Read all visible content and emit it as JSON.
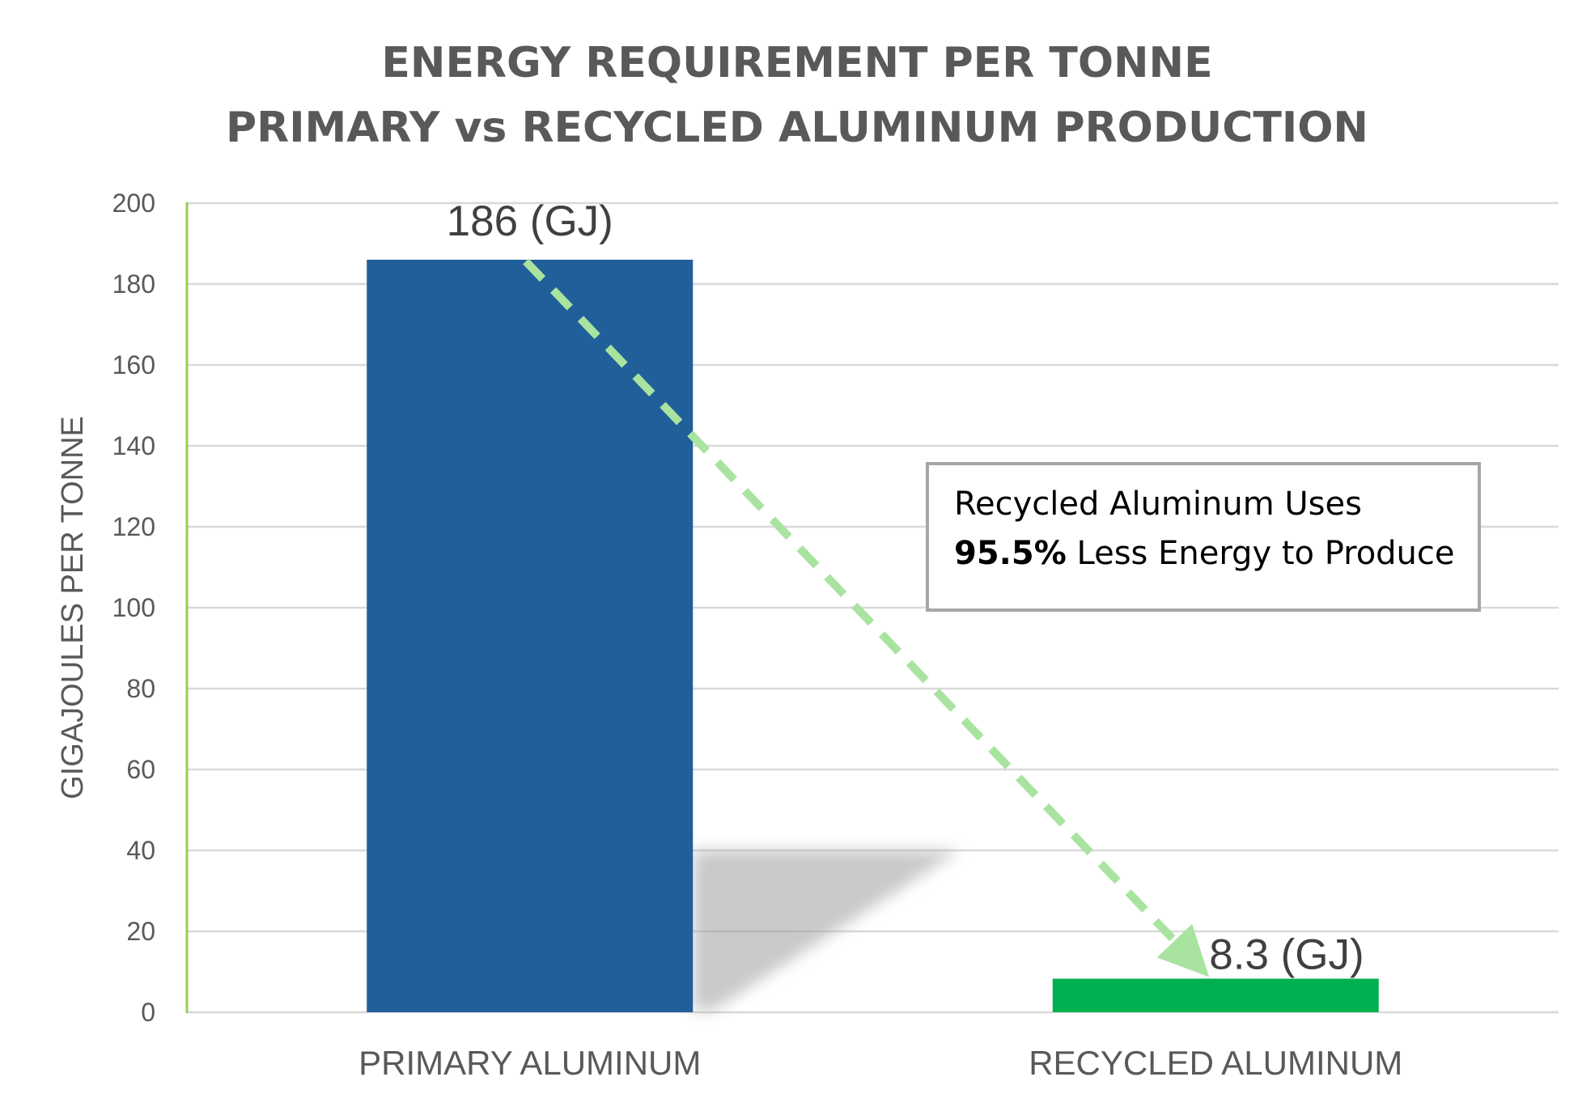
{
  "chart_data": {
    "type": "bar",
    "title_lines": [
      "ENERGY REQUIREMENT PER TONNE",
      "PRIMARY vs RECYCLED ALUMINUM PRODUCTION"
    ],
    "xlabel": "",
    "ylabel": "GIGAJOULES PER TONNE",
    "categories": [
      "PRIMARY ALUMINUM",
      "RECYCLED ALUMINUM"
    ],
    "values": [
      186,
      8.3
    ],
    "data_labels": [
      "186 (GJ)",
      "8.3 (GJ)"
    ],
    "bar_colors": [
      "#215F9A",
      "#00B050"
    ],
    "ylim": [
      0,
      200
    ],
    "yticks": [
      "0",
      "20",
      "40",
      "60",
      "80",
      "100",
      "120",
      "140",
      "160",
      "180",
      "200"
    ],
    "grid": true,
    "legend": "none",
    "annotation": {
      "line1": "Recycled Aluminum Uses",
      "bold_part": "95.5%",
      "line2_rest": " Less Energy to Produce"
    },
    "arrow_color": "#A9E3A0",
    "gridline_color": "#D9D9D9",
    "axis_color": "#92D050"
  }
}
